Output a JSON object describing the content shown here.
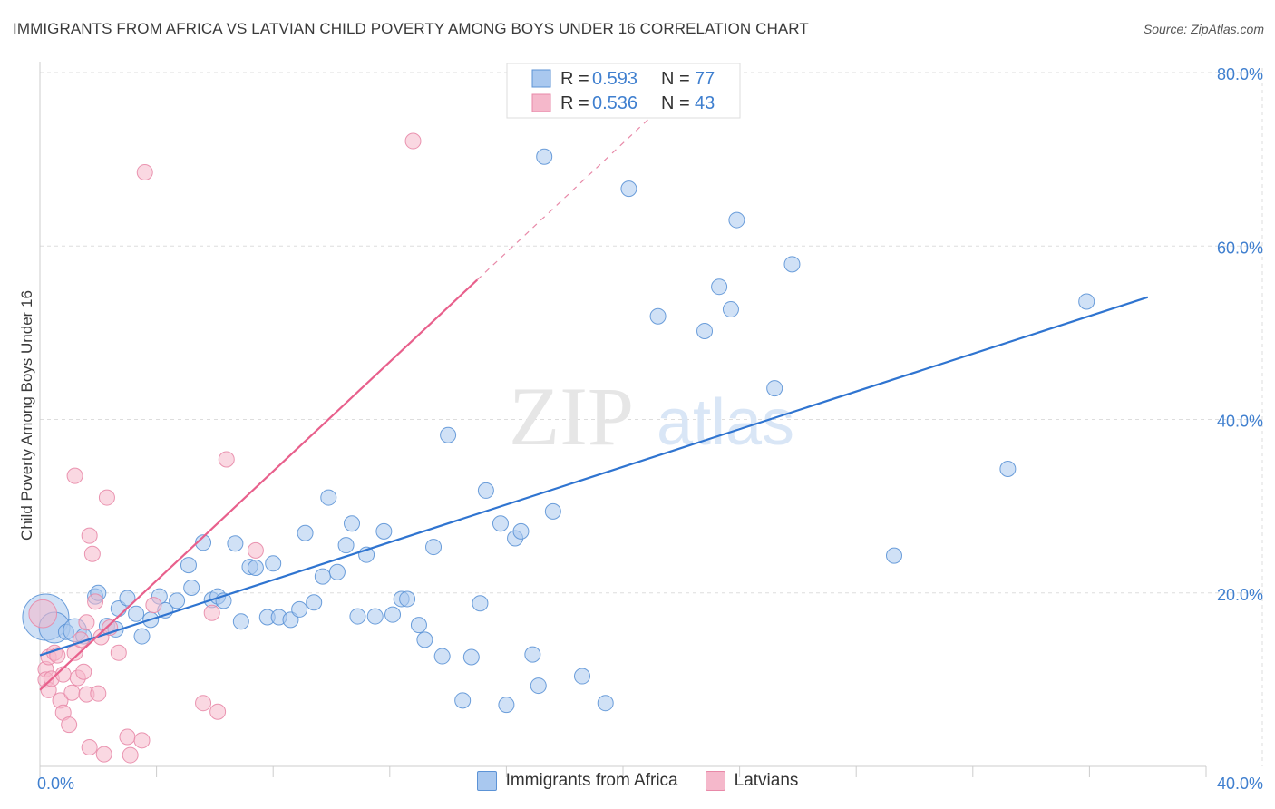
{
  "header": {
    "title": "IMMIGRANTS FROM AFRICA VS LATVIAN CHILD POVERTY AMONG BOYS UNDER 16 CORRELATION CHART",
    "source": "Source: ZipAtlas.com"
  },
  "watermark": {
    "zip": "ZIP",
    "atlas": "atlas"
  },
  "colors": {
    "blue_fill": "#a9c8ef",
    "blue_stroke": "#5c93d6",
    "blue_line": "#2f74d0",
    "pink_fill": "#f5b8cb",
    "pink_stroke": "#e889a8",
    "pink_line": "#e8608c",
    "tick_text": "#3f7fcf",
    "grid": "#dddddd"
  },
  "legend": {
    "items": [
      {
        "r_label": "R =",
        "r_value": "0.593",
        "n_label": "N =",
        "n_value": "77",
        "color": "#a9c8ef"
      },
      {
        "r_label": "R =",
        "r_value": "0.536",
        "n_label": "N =",
        "n_value": "43",
        "color": "#f5b8cb"
      }
    ]
  },
  "bottom_legend": [
    {
      "label": "Immigrants from Africa",
      "color": "#a9c8ef"
    },
    {
      "label": "Latvians",
      "color": "#f5b8cb"
    }
  ],
  "chart_data": {
    "type": "scatter",
    "title": "IMMIGRANTS FROM AFRICA VS LATVIAN CHILD POVERTY AMONG BOYS UNDER 16 CORRELATION CHART",
    "xlabel": "",
    "ylabel": "Child Poverty Among Boys Under 16",
    "xlim": [
      0,
      40
    ],
    "ylim": [
      0,
      80
    ],
    "x_ticks": [
      {
        "value": 0,
        "label": "0.0%"
      },
      {
        "value": 40,
        "label": "40.0%"
      }
    ],
    "y_ticks": [
      {
        "value": 20,
        "label": "20.0%"
      },
      {
        "value": 40,
        "label": "40.0%"
      },
      {
        "value": 60,
        "label": "60.0%"
      },
      {
        "value": 80,
        "label": "80.0%"
      }
    ],
    "grid": true,
    "legend_position": "top-center",
    "series": [
      {
        "name": "Immigrants from Africa",
        "r": 0.593,
        "n": 77,
        "trend": {
          "x": [
            0,
            38
          ],
          "y": [
            12.8,
            54.1
          ]
        },
        "points": [
          [
            0.2,
            17.2,
            3
          ],
          [
            0.5,
            16.0,
            2
          ],
          [
            0.9,
            15.5,
            1
          ],
          [
            1.2,
            15.7,
            1.5
          ],
          [
            1.5,
            15.0,
            1
          ],
          [
            1.9,
            19.6,
            1
          ],
          [
            2.0,
            20.0,
            1
          ],
          [
            2.3,
            16.2,
            1
          ],
          [
            2.6,
            15.8,
            1
          ],
          [
            2.7,
            18.2,
            1
          ],
          [
            3.0,
            19.4,
            1
          ],
          [
            3.3,
            17.6,
            1
          ],
          [
            3.5,
            15.0,
            1
          ],
          [
            3.8,
            16.9,
            1
          ],
          [
            4.1,
            19.6,
            1
          ],
          [
            4.3,
            18.0,
            1
          ],
          [
            4.7,
            19.1,
            1
          ],
          [
            5.1,
            23.2,
            1
          ],
          [
            5.2,
            20.6,
            1
          ],
          [
            5.6,
            25.8,
            1
          ],
          [
            5.9,
            19.2,
            1
          ],
          [
            6.1,
            19.6,
            1
          ],
          [
            6.3,
            19.1,
            1
          ],
          [
            6.7,
            25.7,
            1
          ],
          [
            6.9,
            16.7,
            1
          ],
          [
            7.2,
            23.0,
            1
          ],
          [
            7.4,
            22.9,
            1
          ],
          [
            7.8,
            17.2,
            1
          ],
          [
            8.0,
            23.4,
            1
          ],
          [
            8.2,
            17.2,
            1
          ],
          [
            8.6,
            16.9,
            1
          ],
          [
            8.9,
            18.1,
            1
          ],
          [
            9.1,
            26.9,
            1
          ],
          [
            9.4,
            18.9,
            1
          ],
          [
            9.7,
            21.9,
            1
          ],
          [
            9.9,
            31.0,
            1
          ],
          [
            10.2,
            22.4,
            1
          ],
          [
            10.5,
            25.5,
            1
          ],
          [
            10.7,
            28.0,
            1
          ],
          [
            10.9,
            17.3,
            1
          ],
          [
            11.2,
            24.4,
            1
          ],
          [
            11.5,
            17.3,
            1
          ],
          [
            11.8,
            27.1,
            1
          ],
          [
            12.1,
            17.5,
            1
          ],
          [
            12.4,
            19.3,
            1
          ],
          [
            12.6,
            19.3,
            1
          ],
          [
            13.0,
            16.3,
            1
          ],
          [
            13.2,
            14.6,
            1
          ],
          [
            13.5,
            25.3,
            1
          ],
          [
            13.8,
            12.7,
            1
          ],
          [
            14.0,
            38.2,
            1
          ],
          [
            14.5,
            7.6,
            1
          ],
          [
            14.8,
            12.6,
            1
          ],
          [
            15.1,
            18.8,
            1
          ],
          [
            15.3,
            31.8,
            1
          ],
          [
            15.8,
            28.0,
            1
          ],
          [
            16.0,
            7.1,
            1
          ],
          [
            16.3,
            26.3,
            1
          ],
          [
            16.5,
            27.1,
            1
          ],
          [
            16.9,
            12.9,
            1
          ],
          [
            17.1,
            9.3,
            1
          ],
          [
            17.3,
            70.3,
            1
          ],
          [
            17.6,
            29.4,
            1
          ],
          [
            18.6,
            10.4,
            1
          ],
          [
            19.4,
            7.3,
            1
          ],
          [
            20.2,
            66.6,
            1
          ],
          [
            21.2,
            51.9,
            1
          ],
          [
            22.8,
            50.2,
            1
          ],
          [
            23.3,
            55.3,
            1
          ],
          [
            23.7,
            52.7,
            1
          ],
          [
            23.9,
            63.0,
            1
          ],
          [
            25.2,
            43.6,
            1
          ],
          [
            25.8,
            57.9,
            1
          ],
          [
            29.3,
            24.3,
            1
          ],
          [
            33.2,
            34.3,
            1
          ],
          [
            35.9,
            53.6,
            1
          ]
        ]
      },
      {
        "name": "Latvians",
        "r": 0.536,
        "n": 43,
        "trend": {
          "x": [
            0,
            15
          ],
          "y": [
            8.8,
            56.1
          ]
        },
        "trend_extension": {
          "x": [
            15,
            21.5
          ],
          "y": [
            56.1,
            76.6
          ]
        },
        "points": [
          [
            0.1,
            17.6,
            1.8
          ],
          [
            0.2,
            11.2,
            1
          ],
          [
            0.2,
            10.0,
            1
          ],
          [
            0.3,
            12.6,
            1
          ],
          [
            0.3,
            8.8,
            1
          ],
          [
            0.4,
            10.1,
            1
          ],
          [
            0.5,
            13.1,
            1
          ],
          [
            0.6,
            12.8,
            1
          ],
          [
            0.7,
            7.6,
            1
          ],
          [
            0.8,
            6.2,
            1
          ],
          [
            0.8,
            10.6,
            1
          ],
          [
            1.0,
            4.8,
            1
          ],
          [
            1.1,
            8.5,
            1
          ],
          [
            1.2,
            33.5,
            1
          ],
          [
            1.2,
            13.1,
            1
          ],
          [
            1.3,
            10.2,
            1
          ],
          [
            1.4,
            14.6,
            1
          ],
          [
            1.5,
            10.9,
            1
          ],
          [
            1.6,
            16.6,
            1
          ],
          [
            1.6,
            8.3,
            1
          ],
          [
            1.7,
            2.2,
            1
          ],
          [
            1.7,
            26.6,
            1
          ],
          [
            1.8,
            24.5,
            1
          ],
          [
            1.9,
            19.0,
            1
          ],
          [
            2.0,
            8.4,
            1
          ],
          [
            2.1,
            14.9,
            1
          ],
          [
            2.2,
            1.4,
            1
          ],
          [
            2.3,
            31.0,
            1
          ],
          [
            2.4,
            16.0,
            1
          ],
          [
            2.7,
            13.1,
            1
          ],
          [
            3.0,
            3.4,
            1
          ],
          [
            3.1,
            1.3,
            1
          ],
          [
            3.5,
            3.0,
            1
          ],
          [
            3.6,
            68.5,
            1
          ],
          [
            3.9,
            18.6,
            1
          ],
          [
            5.6,
            7.3,
            1
          ],
          [
            5.9,
            17.7,
            1
          ],
          [
            6.1,
            6.3,
            1
          ],
          [
            6.4,
            35.4,
            1
          ],
          [
            7.4,
            24.9,
            1
          ],
          [
            12.8,
            72.1,
            1
          ]
        ]
      }
    ]
  }
}
